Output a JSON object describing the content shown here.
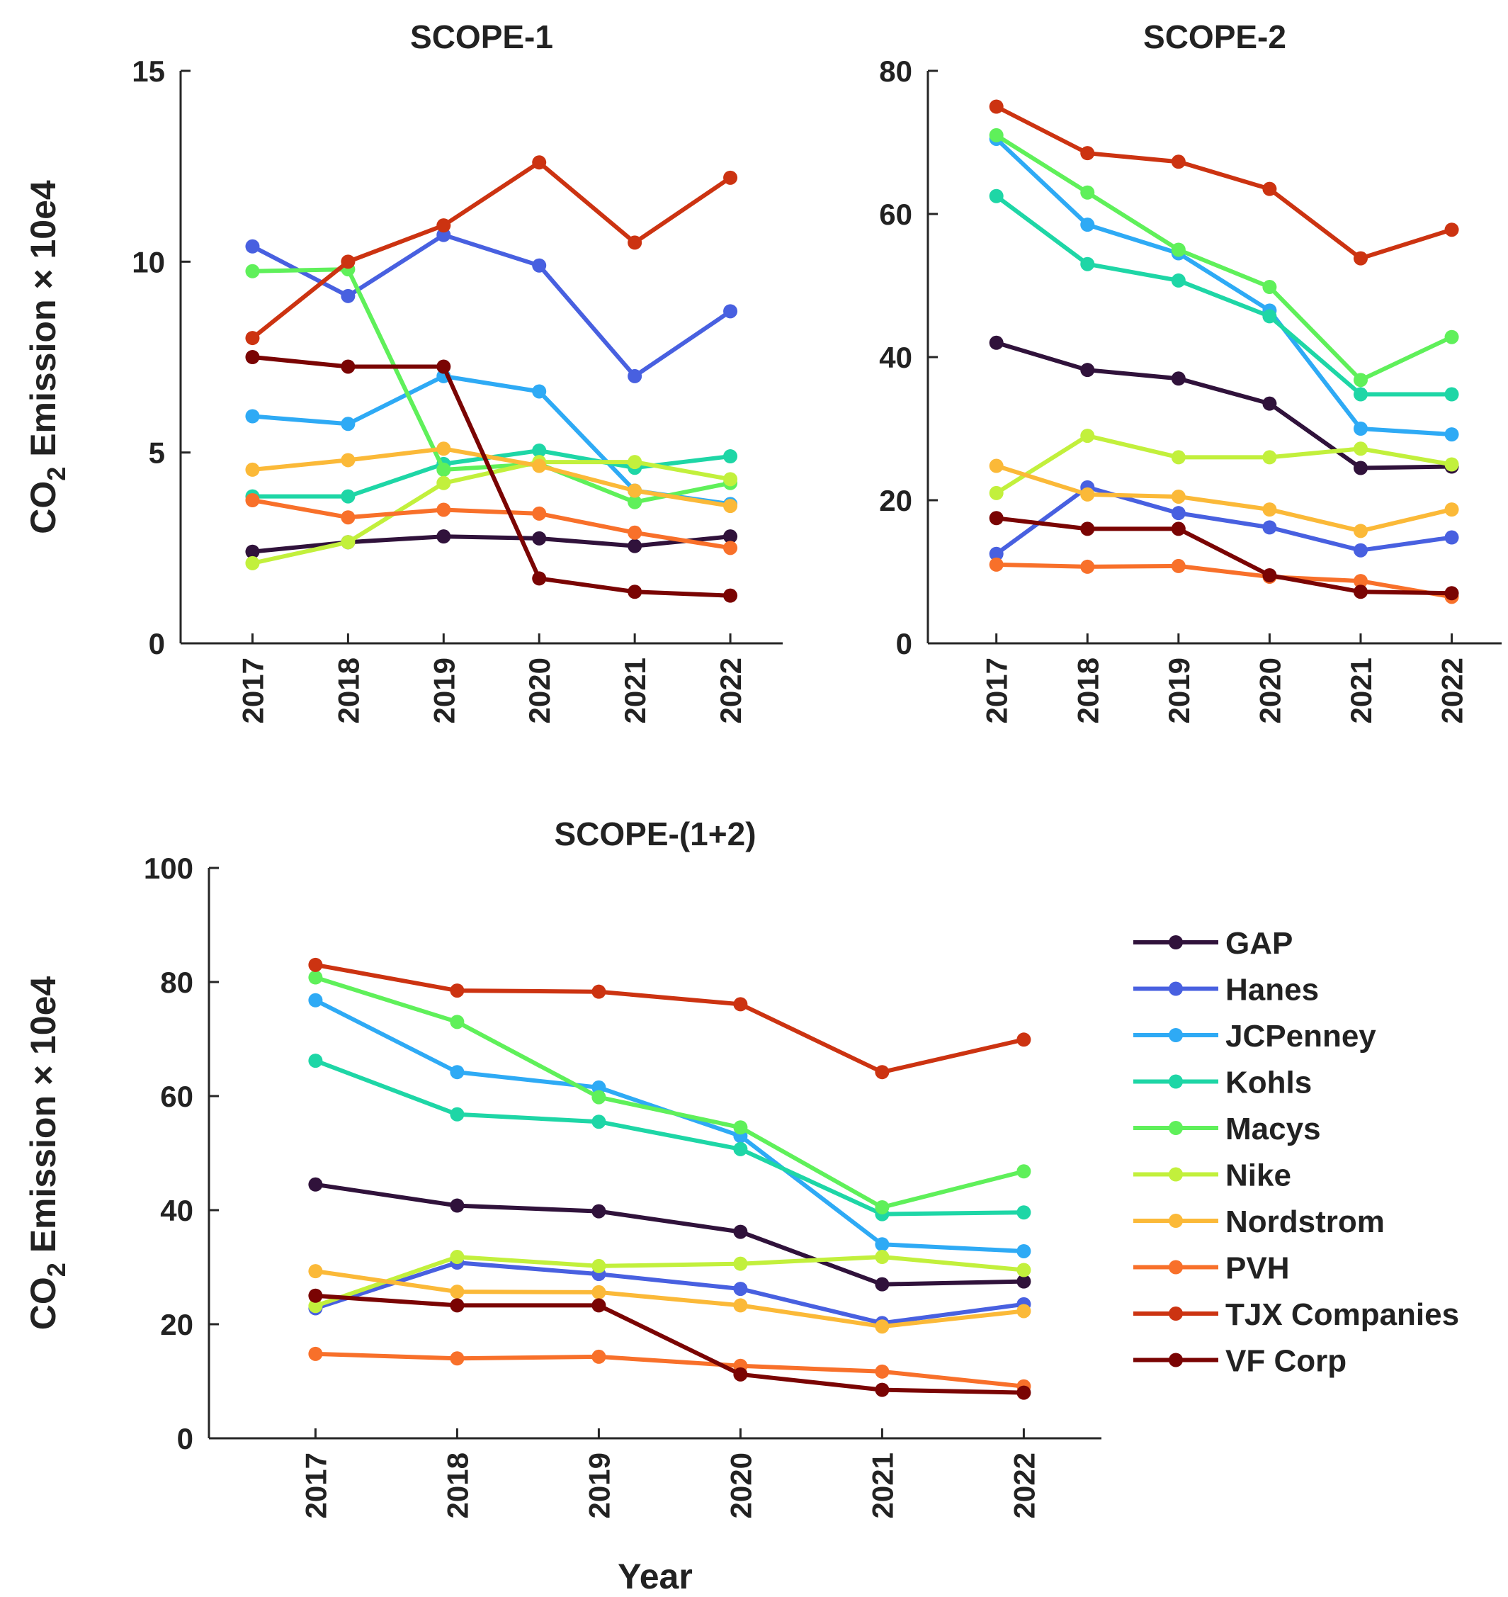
{
  "chart_data": [
    {
      "id": "scope1",
      "type": "line",
      "title": "SCOPE-1",
      "ylabel": "CO2 Emission × 10e4",
      "xlabel": "",
      "ylim": [
        0,
        15
      ],
      "yticks": [
        "0",
        "5",
        "10",
        "15"
      ],
      "categories": [
        "2017",
        "2018",
        "2019",
        "2020",
        "2021",
        "2022"
      ],
      "series": [
        {
          "name": "GAP",
          "values": [
            2.4,
            2.65,
            2.8,
            2.75,
            2.55,
            2.8
          ]
        },
        {
          "name": "Hanes",
          "values": [
            10.4,
            9.1,
            10.7,
            9.9,
            7.0,
            8.7
          ]
        },
        {
          "name": "JCPenney",
          "values": [
            5.95,
            5.75,
            7.0,
            6.6,
            4.0,
            3.65
          ]
        },
        {
          "name": "Kohls",
          "values": [
            3.85,
            3.85,
            4.7,
            5.05,
            4.6,
            4.9
          ]
        },
        {
          "name": "Macys",
          "values": [
            9.75,
            9.8,
            4.55,
            4.7,
            3.7,
            4.2
          ]
        },
        {
          "name": "Nike",
          "values": [
            2.1,
            2.65,
            4.2,
            4.75,
            4.75,
            4.3
          ]
        },
        {
          "name": "Nordstrom",
          "values": [
            4.55,
            4.8,
            5.1,
            4.65,
            4.0,
            3.6
          ]
        },
        {
          "name": "PVH",
          "values": [
            3.75,
            3.3,
            3.5,
            3.4,
            2.9,
            2.5
          ]
        },
        {
          "name": "TJX Companies",
          "values": [
            8.0,
            10.0,
            10.95,
            12.6,
            10.5,
            12.2
          ]
        },
        {
          "name": "VF Corp",
          "values": [
            7.5,
            7.25,
            7.25,
            1.7,
            1.35,
            1.25
          ]
        }
      ]
    },
    {
      "id": "scope2",
      "type": "line",
      "title": "SCOPE-2",
      "ylabel": "",
      "xlabel": "",
      "ylim": [
        0,
        80
      ],
      "yticks": [
        "0",
        "20",
        "40",
        "60",
        "80"
      ],
      "categories": [
        "2017",
        "2018",
        "2019",
        "2020",
        "2021",
        "2022"
      ],
      "series": [
        {
          "name": "GAP",
          "values": [
            42.0,
            38.2,
            37.0,
            33.5,
            24.5,
            24.7
          ]
        },
        {
          "name": "Hanes",
          "values": [
            12.5,
            21.8,
            18.2,
            16.2,
            13.0,
            14.8
          ]
        },
        {
          "name": "JCPenney",
          "values": [
            70.5,
            58.5,
            54.5,
            46.5,
            30.0,
            29.2
          ]
        },
        {
          "name": "Kohls",
          "values": [
            62.5,
            53.0,
            50.7,
            45.7,
            34.8,
            34.8
          ]
        },
        {
          "name": "Macys",
          "values": [
            71.0,
            63.0,
            55.0,
            49.8,
            36.8,
            42.8
          ]
        },
        {
          "name": "Nike",
          "values": [
            21.0,
            29.0,
            26.0,
            26.0,
            27.2,
            25.0
          ]
        },
        {
          "name": "Nordstrom",
          "values": [
            24.8,
            20.8,
            20.5,
            18.7,
            15.7,
            18.7
          ]
        },
        {
          "name": "PVH",
          "values": [
            11.0,
            10.7,
            10.8,
            9.3,
            8.7,
            6.5
          ]
        },
        {
          "name": "TJX Companies",
          "values": [
            75.0,
            68.5,
            67.3,
            63.5,
            53.8,
            57.8
          ]
        },
        {
          "name": "VF Corp",
          "values": [
            17.5,
            16.0,
            16.0,
            9.5,
            7.2,
            7.0
          ]
        }
      ]
    },
    {
      "id": "scope12",
      "type": "line",
      "title": "SCOPE-(1+2)",
      "ylabel": "CO2 Emission × 10e4",
      "xlabel": "Year",
      "ylim": [
        0,
        100
      ],
      "yticks": [
        "0",
        "20",
        "40",
        "60",
        "80",
        "100"
      ],
      "categories": [
        "2017",
        "2018",
        "2019",
        "2020",
        "2021",
        "2022"
      ],
      "series": [
        {
          "name": "GAP",
          "values": [
            44.5,
            40.8,
            39.8,
            36.2,
            27.0,
            27.5
          ]
        },
        {
          "name": "Hanes",
          "values": [
            22.8,
            30.8,
            28.8,
            26.2,
            20.2,
            23.5
          ]
        },
        {
          "name": "JCPenney",
          "values": [
            76.8,
            64.2,
            61.5,
            53.0,
            34.0,
            32.8
          ]
        },
        {
          "name": "Kohls",
          "values": [
            66.2,
            56.8,
            55.5,
            50.7,
            39.3,
            39.6
          ]
        },
        {
          "name": "Macys",
          "values": [
            80.8,
            73.0,
            59.8,
            54.5,
            40.5,
            46.8
          ]
        },
        {
          "name": "Nike",
          "values": [
            23.2,
            31.8,
            30.2,
            30.6,
            31.8,
            29.5
          ]
        },
        {
          "name": "Nordstrom",
          "values": [
            29.3,
            25.7,
            25.6,
            23.3,
            19.6,
            22.3
          ]
        },
        {
          "name": "PVH",
          "values": [
            14.8,
            14.0,
            14.3,
            12.7,
            11.7,
            9.1
          ]
        },
        {
          "name": "TJX Companies",
          "values": [
            83.0,
            78.5,
            78.3,
            76.1,
            64.2,
            69.9
          ]
        },
        {
          "name": "VF Corp",
          "values": [
            25.0,
            23.3,
            23.3,
            11.2,
            8.5,
            8.0
          ]
        }
      ]
    }
  ],
  "legend": {
    "placement": "right",
    "entries": [
      "GAP",
      "Hanes",
      "JCPenney",
      "Kohls",
      "Macys",
      "Nike",
      "Nordstrom",
      "PVH",
      "TJX Companies",
      "VF Corp"
    ]
  },
  "colors": {
    "GAP": "#30123b",
    "Hanes": "#4860e0",
    "JCPenney": "#2eaaf5",
    "Kohls": "#1ed6a6",
    "Macys": "#5ff05a",
    "Nike": "#c2f03c",
    "Nordstrom": "#fbb938",
    "PVH": "#f8702a",
    "TJX Companies": "#cc3311",
    "VF Corp": "#7a0403",
    "axis": "#262626"
  }
}
